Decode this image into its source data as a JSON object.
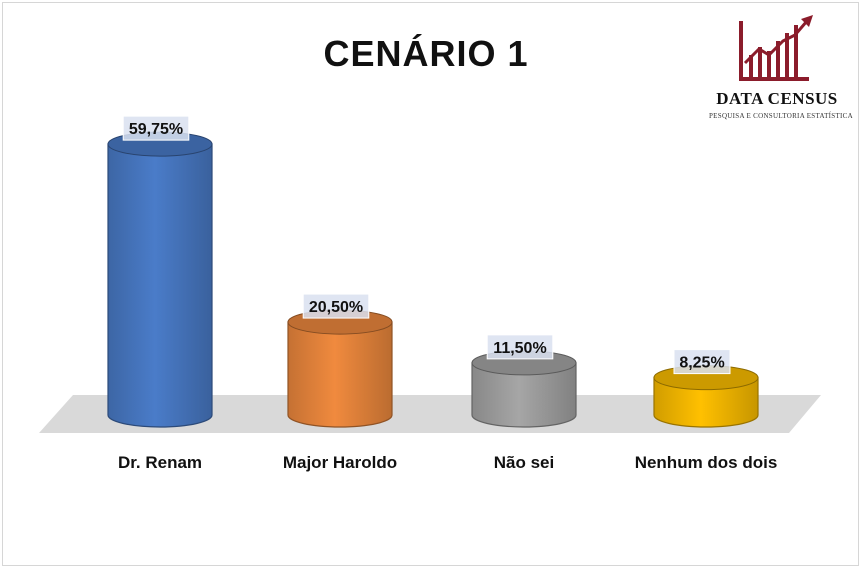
{
  "brand": {
    "name": "DATA CENSUS",
    "tagline": "PESQUISA E CONSULTORIA ESTATÍSTICA",
    "color": "#8b1c2b"
  },
  "chart_data": {
    "type": "bar",
    "title": "CENÁRIO 1",
    "categories": [
      "Dr. Renam",
      "Major Haroldo",
      "Não sei",
      "Nenhum dos dois"
    ],
    "values": [
      59.75,
      20.5,
      11.5,
      8.25
    ],
    "value_labels": [
      "59,75%",
      "20,50%",
      "11,50%",
      "8,25%"
    ],
    "colors": [
      "#4a7cc9",
      "#f08a3e",
      "#a6a6a6",
      "#ffc000"
    ],
    "xlabel": "",
    "ylabel": "",
    "ylim": [
      0,
      60
    ],
    "grid": false,
    "legend": "none",
    "style": "3d-cylinder"
  }
}
